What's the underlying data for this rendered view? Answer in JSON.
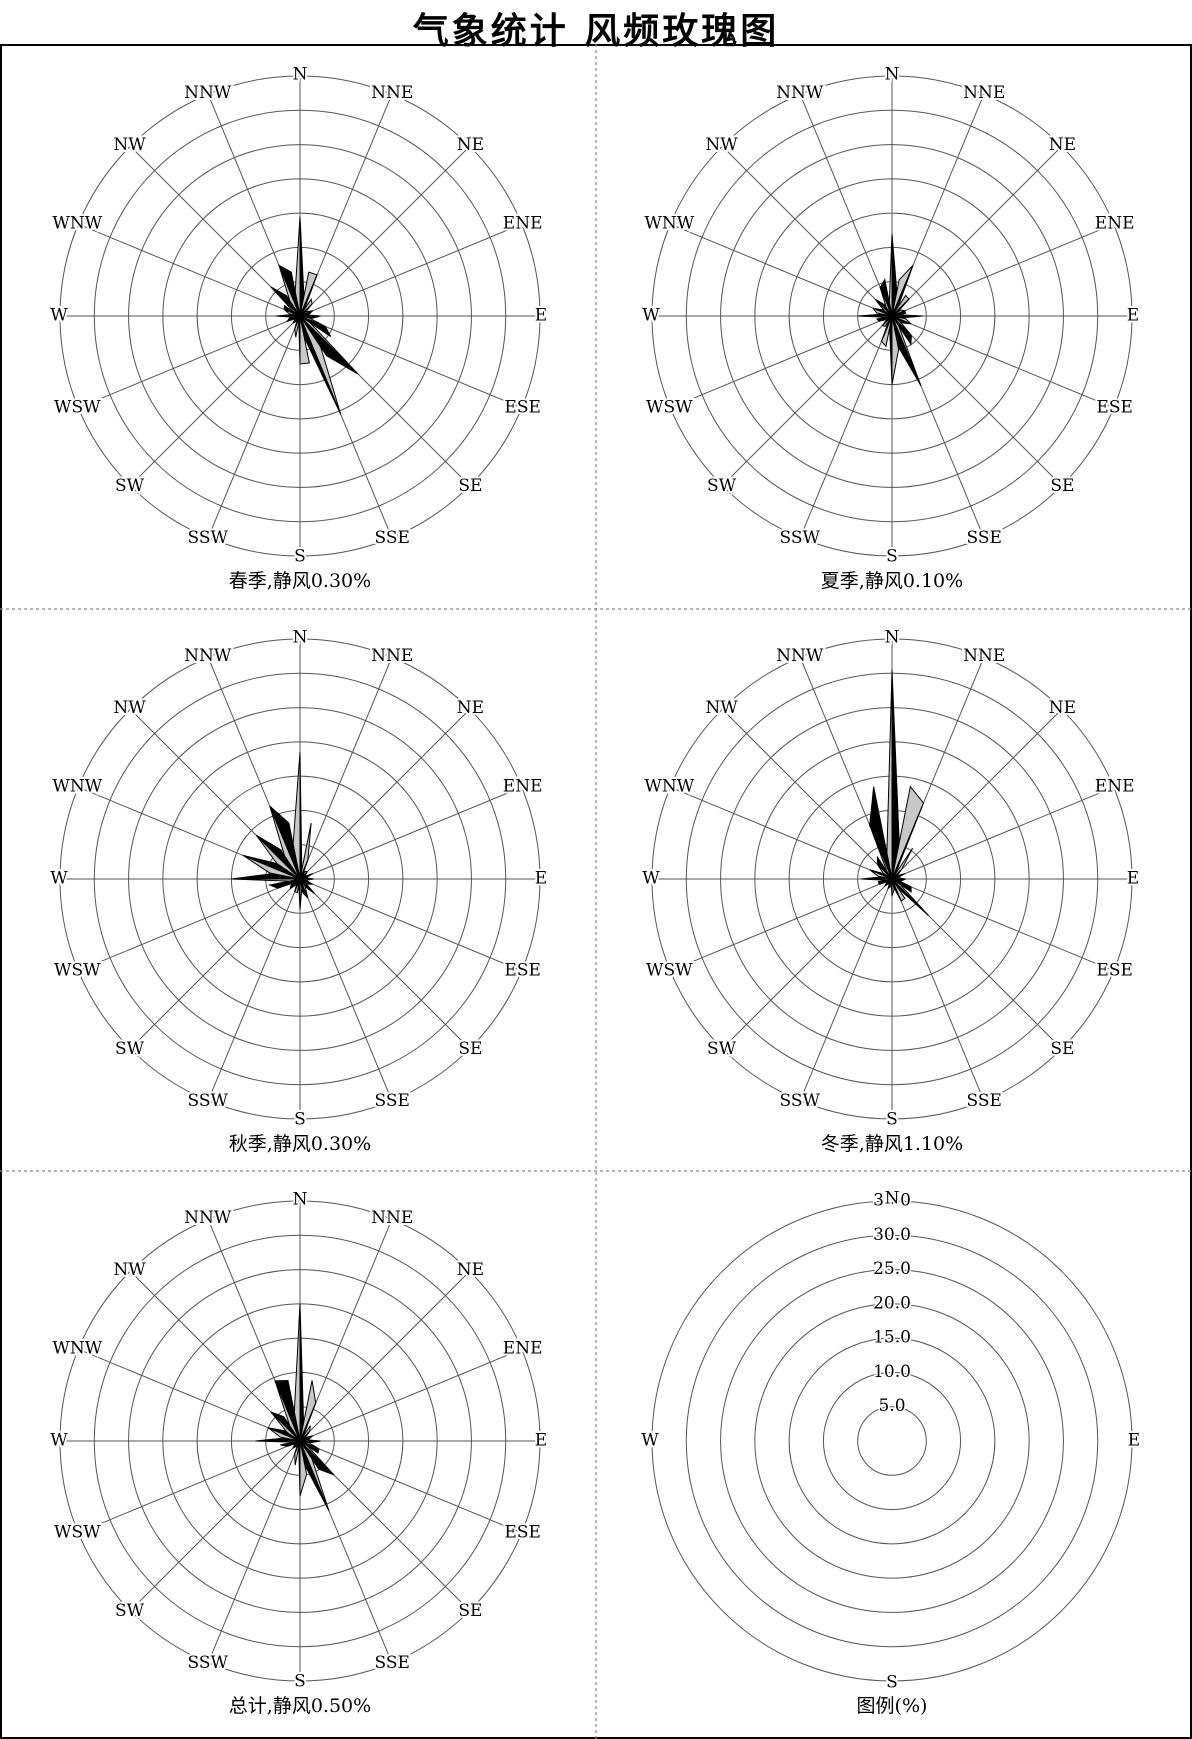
{
  "title": "气象统计    风频玫瑰图",
  "chart_data": [
    {
      "type": "radar",
      "subplot": "spring",
      "caption": "春季,静风0.30%",
      "directions": [
        "N",
        "NNE",
        "NE",
        "ENE",
        "E",
        "ESE",
        "SE",
        "SSE",
        "S",
        "SSW",
        "SW",
        "WSW",
        "W",
        "WNW",
        "NW",
        "NNW"
      ],
      "values": [
        14.5,
        6.5,
        2.5,
        2.0,
        3.0,
        4.0,
        12.0,
        15.5,
        7.0,
        2.0,
        1.5,
        2.0,
        3.5,
        2.5,
        6.0,
        8.0
      ],
      "rmax": 35
    },
    {
      "type": "radar",
      "subplot": "summer",
      "caption": "夏季,静风0.10%",
      "directions": [
        "N",
        "NNE",
        "NE",
        "ENE",
        "E",
        "ESE",
        "SE",
        "SSE",
        "S",
        "SSW",
        "SW",
        "WSW",
        "W",
        "WNW",
        "NW",
        "NNW"
      ],
      "values": [
        12.0,
        8.0,
        3.5,
        2.0,
        4.5,
        3.0,
        4.0,
        11.0,
        10.0,
        4.0,
        2.0,
        2.0,
        5.0,
        3.0,
        3.5,
        4.5
      ],
      "rmax": 35
    },
    {
      "type": "radar",
      "subplot": "autumn",
      "caption": "秋季,静风0.30%",
      "directions": [
        "N",
        "NNE",
        "NE",
        "ENE",
        "E",
        "ESE",
        "SE",
        "SSE",
        "S",
        "SSW",
        "SW",
        "WSW",
        "W",
        "WNW",
        "NW",
        "NNW"
      ],
      "values": [
        18.5,
        3.0,
        1.5,
        2.0,
        2.0,
        2.0,
        3.0,
        3.0,
        4.5,
        2.0,
        2.0,
        3.5,
        10.0,
        9.0,
        9.0,
        11.5
      ],
      "rmax": 35
    },
    {
      "type": "radar",
      "subplot": "winter",
      "caption": "冬季,静风1.10%",
      "directions": [
        "N",
        "NNE",
        "NE",
        "ENE",
        "E",
        "ESE",
        "SE",
        "SSE",
        "S",
        "SSW",
        "SW",
        "WSW",
        "W",
        "WNW",
        "NW",
        "NNW"
      ],
      "values": [
        30.5,
        12.0,
        2.0,
        2.0,
        2.0,
        3.0,
        7.5,
        3.5,
        2.5,
        1.5,
        1.5,
        2.0,
        4.5,
        3.5,
        3.0,
        8.5
      ],
      "rmax": 35
    },
    {
      "type": "radar",
      "subplot": "annual",
      "caption": "总计,静风0.50%",
      "directions": [
        "N",
        "NNE",
        "NE",
        "ENE",
        "E",
        "ESE",
        "SE",
        "SSE",
        "S",
        "SSW",
        "SW",
        "WSW",
        "W",
        "WNW",
        "NW",
        "NNW"
      ],
      "values": [
        20.0,
        6.0,
        2.0,
        2.0,
        3.0,
        3.0,
        7.0,
        11.0,
        8.0,
        2.0,
        1.5,
        2.0,
        6.5,
        5.0,
        6.0,
        9.5
      ],
      "rmax": 35
    }
  ],
  "legend": {
    "caption": "图例(%)",
    "ring_labels": [
      "35.0",
      "30.0",
      "25.0",
      "20.0",
      "15.0",
      "10.0",
      "5.0"
    ],
    "axis_labels": [
      "N",
      "E",
      "S",
      "W"
    ]
  },
  "colors": {
    "light_fill": "#c8c8c8",
    "dark_fill": "#000000",
    "grid": "#555555",
    "divider": "#888888"
  }
}
